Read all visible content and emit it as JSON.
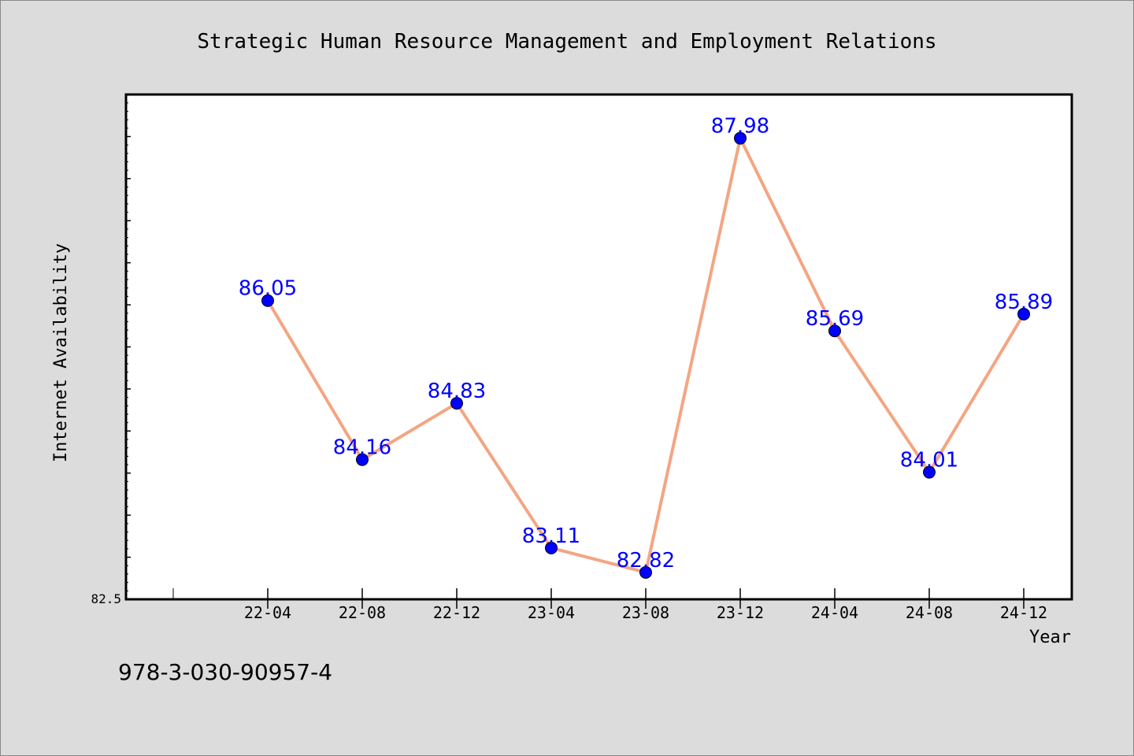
{
  "chart_data": {
    "type": "line",
    "title": "Strategic Human Resource Management and Employment Relations",
    "xlabel": "Year",
    "ylabel": "Internet Availability",
    "categories": [
      "22-04",
      "22-08",
      "22-12",
      "23-04",
      "23-08",
      "23-12",
      "24-04",
      "24-08",
      "24-12"
    ],
    "series": [
      {
        "values": [
          86.05,
          84.16,
          84.83,
          83.11,
          82.82,
          87.98,
          85.69,
          84.01,
          85.89
        ],
        "labels": [
          "86.05",
          "84.16",
          "84.83",
          "83.11",
          "82.82",
          "87.98",
          "85.69",
          "84.01",
          "85.89"
        ]
      }
    ],
    "ylim": [
      82.5,
      88.5
    ],
    "y_tick_label": "82.5",
    "grid": false,
    "line_color": "#f4a582",
    "marker_color": "#0000ff",
    "label_color": "#0000ff"
  },
  "footer": {
    "isbn": "978-3-030-90957-4"
  }
}
